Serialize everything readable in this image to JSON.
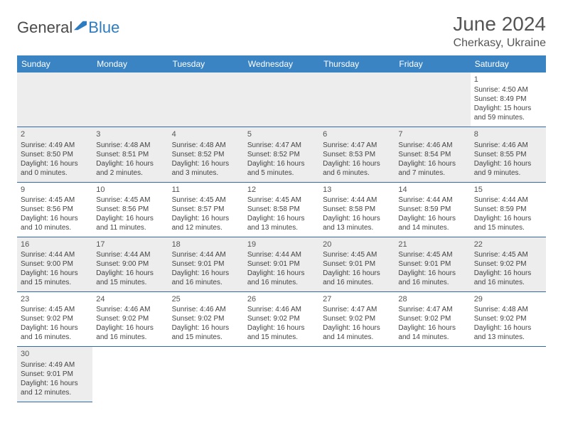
{
  "logo": {
    "text1": "General",
    "text2": "Blue"
  },
  "title": "June 2024",
  "location": "Cherkasy, Ukraine",
  "colors": {
    "header_bg": "#3b84c4",
    "header_text": "#ffffff",
    "row_border": "#2e6ba8",
    "shaded_bg": "#ededed",
    "text": "#444444",
    "logo_blue": "#2e7cc0",
    "logo_gray": "#4a4a4a"
  },
  "weekdays": [
    "Sunday",
    "Monday",
    "Tuesday",
    "Wednesday",
    "Thursday",
    "Friday",
    "Saturday"
  ],
  "weeks": [
    [
      null,
      null,
      null,
      null,
      null,
      null,
      {
        "n": "1",
        "sr": "4:50 AM",
        "ss": "8:49 PM",
        "dl": "15 hours and 59 minutes."
      }
    ],
    [
      {
        "n": "2",
        "sr": "4:49 AM",
        "ss": "8:50 PM",
        "dl": "16 hours and 0 minutes."
      },
      {
        "n": "3",
        "sr": "4:48 AM",
        "ss": "8:51 PM",
        "dl": "16 hours and 2 minutes."
      },
      {
        "n": "4",
        "sr": "4:48 AM",
        "ss": "8:52 PM",
        "dl": "16 hours and 3 minutes."
      },
      {
        "n": "5",
        "sr": "4:47 AM",
        "ss": "8:52 PM",
        "dl": "16 hours and 5 minutes."
      },
      {
        "n": "6",
        "sr": "4:47 AM",
        "ss": "8:53 PM",
        "dl": "16 hours and 6 minutes."
      },
      {
        "n": "7",
        "sr": "4:46 AM",
        "ss": "8:54 PM",
        "dl": "16 hours and 7 minutes."
      },
      {
        "n": "8",
        "sr": "4:46 AM",
        "ss": "8:55 PM",
        "dl": "16 hours and 9 minutes."
      }
    ],
    [
      {
        "n": "9",
        "sr": "4:45 AM",
        "ss": "8:56 PM",
        "dl": "16 hours and 10 minutes."
      },
      {
        "n": "10",
        "sr": "4:45 AM",
        "ss": "8:56 PM",
        "dl": "16 hours and 11 minutes."
      },
      {
        "n": "11",
        "sr": "4:45 AM",
        "ss": "8:57 PM",
        "dl": "16 hours and 12 minutes."
      },
      {
        "n": "12",
        "sr": "4:45 AM",
        "ss": "8:58 PM",
        "dl": "16 hours and 13 minutes."
      },
      {
        "n": "13",
        "sr": "4:44 AM",
        "ss": "8:58 PM",
        "dl": "16 hours and 13 minutes."
      },
      {
        "n": "14",
        "sr": "4:44 AM",
        "ss": "8:59 PM",
        "dl": "16 hours and 14 minutes."
      },
      {
        "n": "15",
        "sr": "4:44 AM",
        "ss": "8:59 PM",
        "dl": "16 hours and 15 minutes."
      }
    ],
    [
      {
        "n": "16",
        "sr": "4:44 AM",
        "ss": "9:00 PM",
        "dl": "16 hours and 15 minutes."
      },
      {
        "n": "17",
        "sr": "4:44 AM",
        "ss": "9:00 PM",
        "dl": "16 hours and 15 minutes."
      },
      {
        "n": "18",
        "sr": "4:44 AM",
        "ss": "9:01 PM",
        "dl": "16 hours and 16 minutes."
      },
      {
        "n": "19",
        "sr": "4:44 AM",
        "ss": "9:01 PM",
        "dl": "16 hours and 16 minutes."
      },
      {
        "n": "20",
        "sr": "4:45 AM",
        "ss": "9:01 PM",
        "dl": "16 hours and 16 minutes."
      },
      {
        "n": "21",
        "sr": "4:45 AM",
        "ss": "9:01 PM",
        "dl": "16 hours and 16 minutes."
      },
      {
        "n": "22",
        "sr": "4:45 AM",
        "ss": "9:02 PM",
        "dl": "16 hours and 16 minutes."
      }
    ],
    [
      {
        "n": "23",
        "sr": "4:45 AM",
        "ss": "9:02 PM",
        "dl": "16 hours and 16 minutes."
      },
      {
        "n": "24",
        "sr": "4:46 AM",
        "ss": "9:02 PM",
        "dl": "16 hours and 16 minutes."
      },
      {
        "n": "25",
        "sr": "4:46 AM",
        "ss": "9:02 PM",
        "dl": "16 hours and 15 minutes."
      },
      {
        "n": "26",
        "sr": "4:46 AM",
        "ss": "9:02 PM",
        "dl": "16 hours and 15 minutes."
      },
      {
        "n": "27",
        "sr": "4:47 AM",
        "ss": "9:02 PM",
        "dl": "16 hours and 14 minutes."
      },
      {
        "n": "28",
        "sr": "4:47 AM",
        "ss": "9:02 PM",
        "dl": "16 hours and 14 minutes."
      },
      {
        "n": "29",
        "sr": "4:48 AM",
        "ss": "9:02 PM",
        "dl": "16 hours and 13 minutes."
      }
    ],
    [
      {
        "n": "30",
        "sr": "4:49 AM",
        "ss": "9:01 PM",
        "dl": "16 hours and 12 minutes."
      },
      null,
      null,
      null,
      null,
      null,
      null
    ]
  ],
  "labels": {
    "sunrise": "Sunrise:",
    "sunset": "Sunset:",
    "daylight": "Daylight:"
  }
}
